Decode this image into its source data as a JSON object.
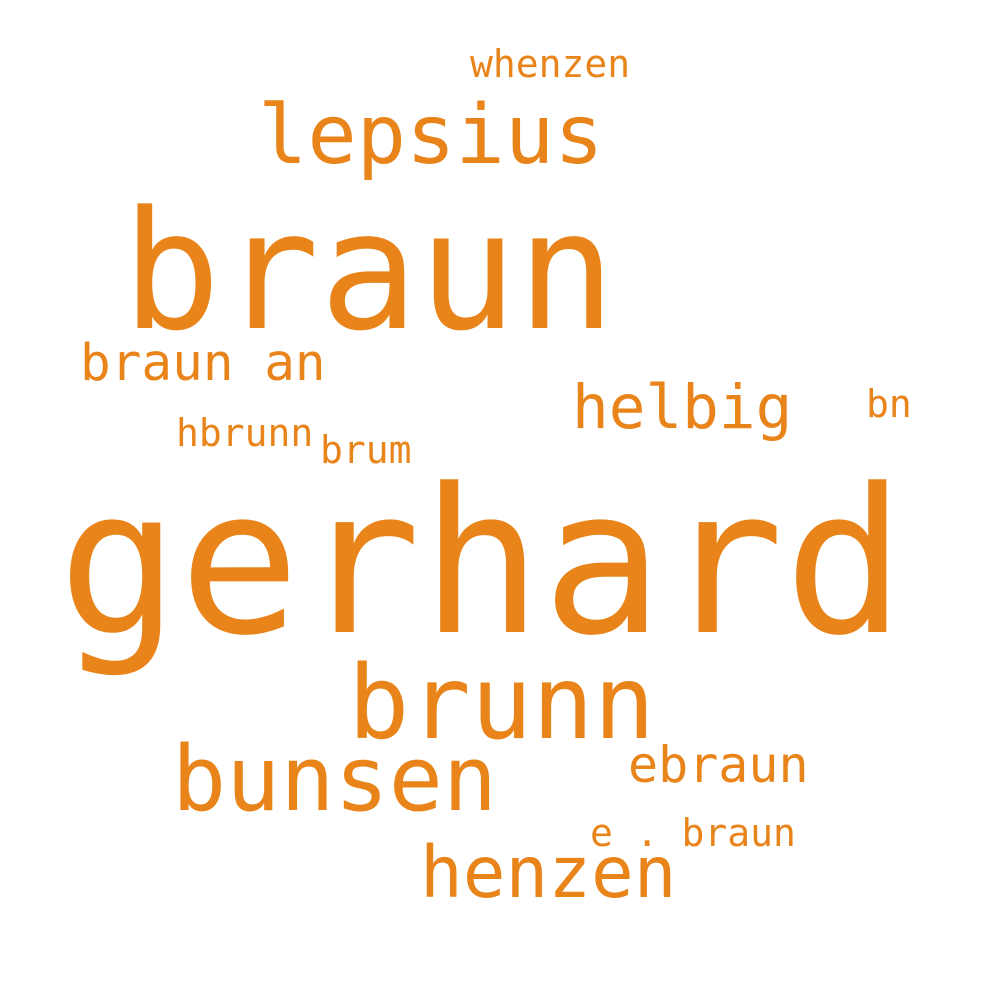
{
  "words": [
    "whenzen",
    "lepsius",
    "braun",
    "braun an",
    "helbig",
    "bn",
    "hbrunn",
    "brum",
    "gerhard",
    "brunn",
    "bunsen",
    "ebraun",
    "e . braun",
    "henzen"
  ]
}
